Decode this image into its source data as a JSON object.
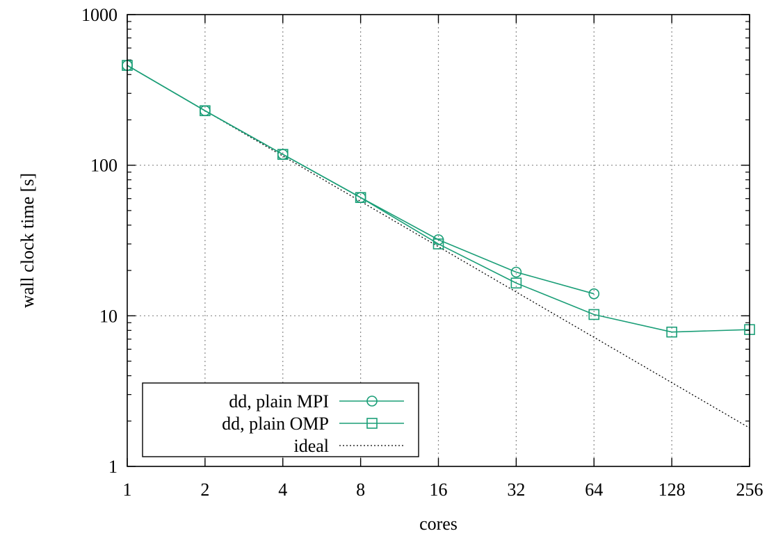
{
  "chart_data": {
    "type": "line",
    "title": "",
    "xlabel": "cores",
    "ylabel": "wall clock time [s]",
    "x_scale": "log2",
    "y_scale": "log10",
    "xlim": [
      1,
      256
    ],
    "ylim": [
      1,
      1000
    ],
    "x_ticks": [
      1,
      2,
      4,
      8,
      16,
      32,
      64,
      128,
      256
    ],
    "x_tick_labels": [
      "1",
      "2",
      "4",
      "8",
      "16",
      "32",
      "64",
      "128",
      "256"
    ],
    "y_ticks": [
      1,
      10,
      100,
      1000
    ],
    "y_tick_labels": [
      "1",
      "10",
      "100",
      "1000"
    ],
    "grid": true,
    "legend_position": "bottom-left",
    "series": [
      {
        "name": "dd, plain MPI",
        "color": "#1a9e77",
        "marker": "circle",
        "x": [
          1,
          2,
          4,
          8,
          16,
          32,
          64
        ],
        "y": [
          460,
          230,
          118,
          61,
          32,
          19.5,
          14
        ]
      },
      {
        "name": "dd, plain OMP",
        "color": "#1a9e77",
        "marker": "square",
        "x": [
          1,
          2,
          4,
          8,
          16,
          32,
          64,
          128,
          256
        ],
        "y": [
          460,
          230,
          118,
          61,
          30,
          16.5,
          10.2,
          7.8,
          8.1
        ]
      },
      {
        "name": "ideal",
        "color": "#000000",
        "marker": "none",
        "dash": "dotted",
        "x": [
          1,
          256
        ],
        "y": [
          460,
          1.8
        ]
      }
    ]
  }
}
